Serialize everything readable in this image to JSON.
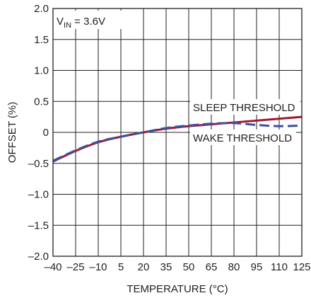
{
  "chart_data": {
    "type": "line",
    "title": "",
    "xlabel": "TEMPERATURE (°C)",
    "ylabel": "OFFSET (%)",
    "xlim": [
      -40,
      125
    ],
    "ylim": [
      -2.0,
      2.0
    ],
    "x_ticks": [
      -40,
      -25,
      -10,
      5,
      20,
      35,
      50,
      65,
      80,
      95,
      110,
      125
    ],
    "x_tick_labels": [
      "–40",
      "–25",
      "–10",
      "5",
      "20",
      "35",
      "50",
      "65",
      "80",
      "95",
      "110",
      "125"
    ],
    "y_ticks": [
      2.0,
      1.5,
      1.0,
      0.5,
      0,
      -0.5,
      -1.0,
      -1.5,
      -2.0
    ],
    "y_tick_labels": [
      "2.0",
      "1.5",
      "1.0",
      "0.5",
      "0",
      "–0.5",
      "–1.0",
      "–1.5",
      "–2.0"
    ],
    "grid": true,
    "annotation": {
      "prefix": "V",
      "subscript": "IN",
      "suffix": " = 3.6V"
    },
    "series": [
      {
        "name": "SLEEP THRESHOLD",
        "color": "#a3182f",
        "style": "solid",
        "x": [
          -40,
          -25,
          -10,
          5,
          20,
          35,
          50,
          65,
          80,
          95,
          110,
          125
        ],
        "y": [
          -0.47,
          -0.3,
          -0.16,
          -0.07,
          0.0,
          0.06,
          0.1,
          0.13,
          0.16,
          0.19,
          0.22,
          0.25
        ]
      },
      {
        "name": "WAKE THRESHOLD",
        "color": "#3a52a0",
        "style": "dashed",
        "x": [
          -40,
          -25,
          -10,
          5,
          20,
          35,
          50,
          65,
          80,
          95,
          110,
          125
        ],
        "y": [
          -0.46,
          -0.29,
          -0.15,
          -0.07,
          0.0,
          0.07,
          0.11,
          0.14,
          0.15,
          0.12,
          0.1,
          0.11
        ]
      }
    ]
  }
}
